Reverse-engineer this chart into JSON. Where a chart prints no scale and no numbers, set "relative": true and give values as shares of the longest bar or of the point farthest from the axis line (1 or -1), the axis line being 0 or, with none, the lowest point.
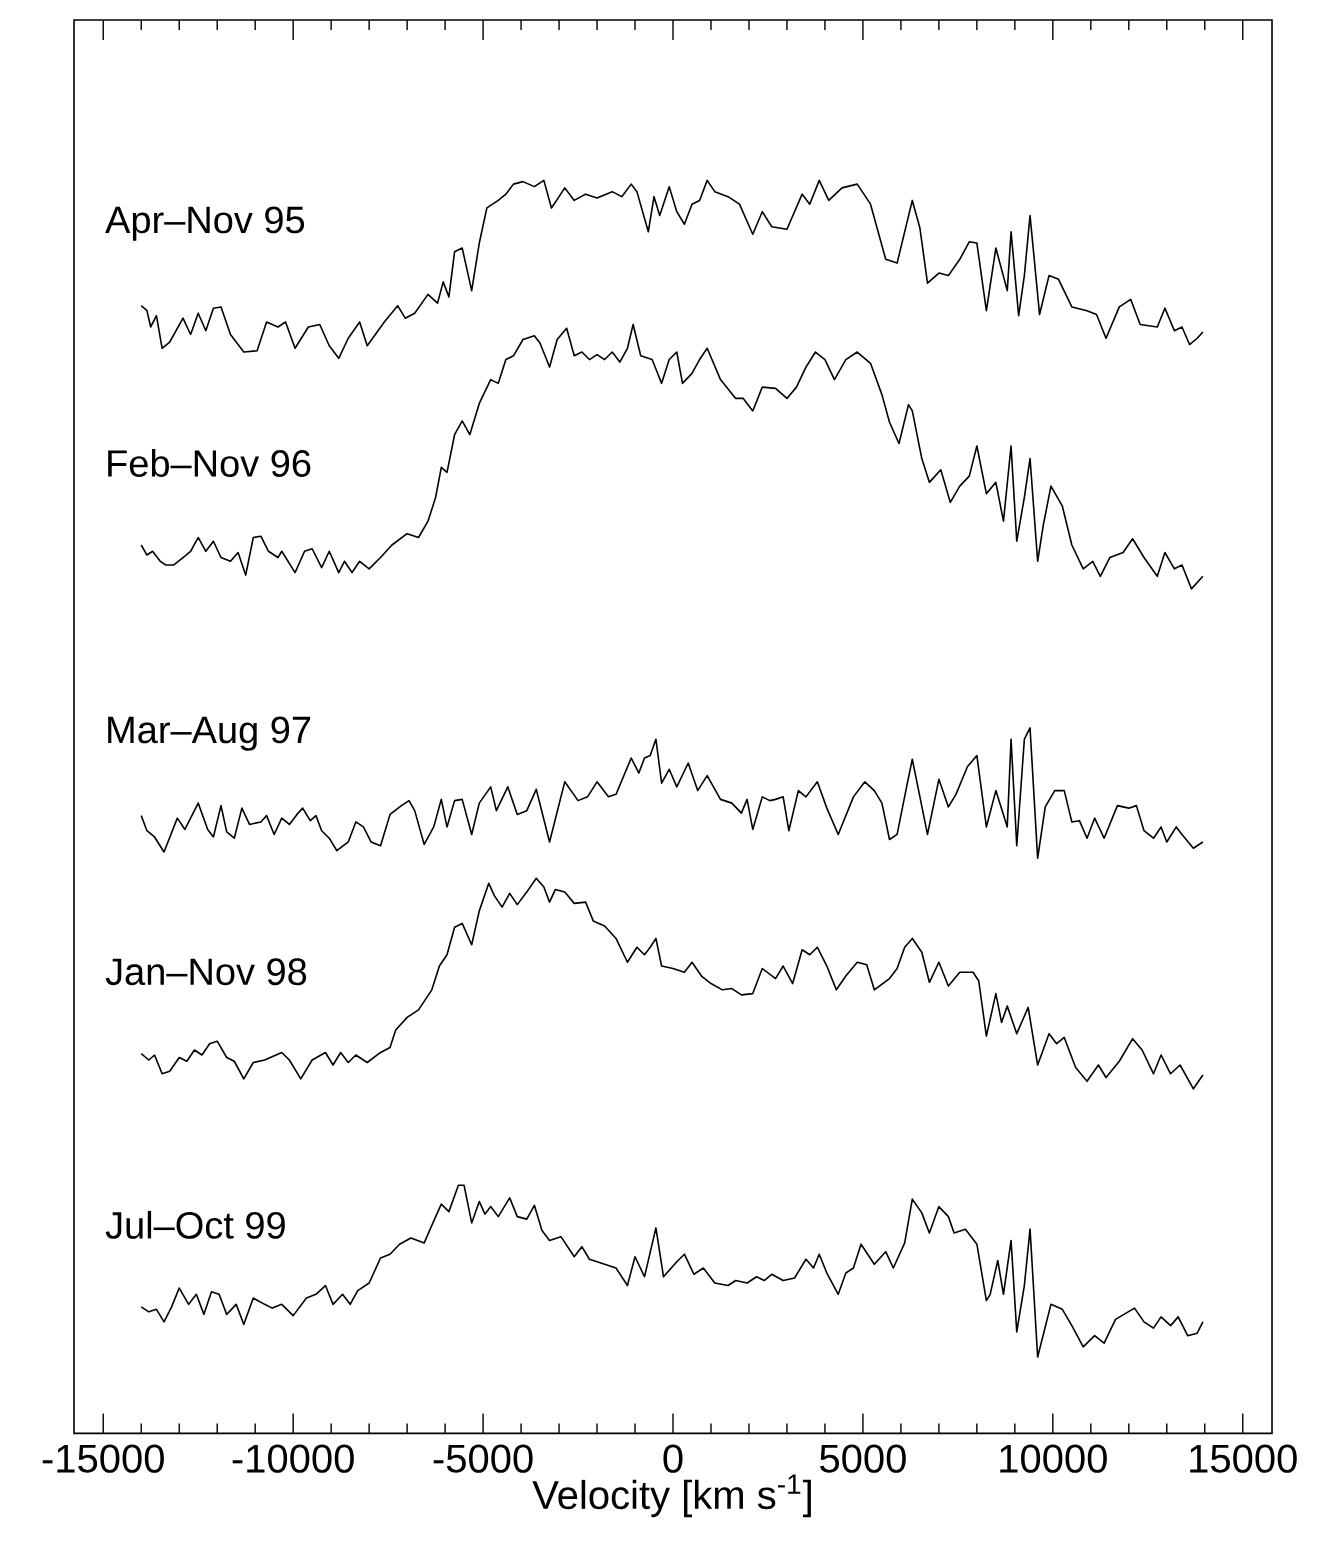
{
  "chart_data": {
    "type": "line",
    "relative": true,
    "xlabel": "Velocity [km s$^{-1}$]",
    "xlim": [
      -15770,
      15770
    ],
    "xticks": [
      -15000,
      -10000,
      -5000,
      0,
      5000,
      10000,
      15000
    ],
    "tick_labels": "x",
    "marker": "none",
    "series": [
      {
        "name": "Apr–Nov 95",
        "color": "#000000",
        "x": [
          -14000,
          -13850,
          -13750,
          -13600,
          -13450,
          -13250,
          -12900,
          -12700,
          -12500,
          -12300,
          -12100,
          -11900,
          -11650,
          -11300,
          -10950,
          -10700,
          -10400,
          -10200,
          -9950,
          -9600,
          -9300,
          -9050,
          -8800,
          -8550,
          -8250,
          -8050,
          -7600,
          -7250,
          -7050,
          -6800,
          -6450,
          -6200,
          -6050,
          -5900,
          -5750,
          -5550,
          -5300,
          -5100,
          -4900,
          -4600,
          -4400,
          -4200,
          -3950,
          -3650,
          -3400,
          -3200,
          -3000,
          -2850,
          -2600,
          -2300,
          -2000,
          -1600,
          -1350,
          -1100,
          -950,
          -650,
          -500,
          -350,
          -100,
          100,
          300,
          500,
          700,
          900,
          1100,
          1450,
          1750,
          2100,
          2350,
          2600,
          3000,
          3400,
          3600,
          3850,
          4100,
          4450,
          4850,
          5200,
          5600,
          5900,
          6300,
          6500,
          6700,
          7000,
          7250,
          7550,
          7800,
          8000,
          8250,
          8500,
          8800,
          8900,
          9100,
          9250,
          9400,
          9650,
          9900,
          10150,
          10500,
          10900,
          11150,
          11400,
          11750,
          12050,
          12300,
          12750,
          12950,
          13200,
          13400,
          13600,
          13800,
          13950
        ],
        "values": [
          0.9,
          0.896,
          0.883,
          0.892,
          0.866,
          0.871,
          0.89,
          0.877,
          0.894,
          0.88,
          0.898,
          0.899,
          0.877,
          0.863,
          0.864,
          0.887,
          0.883,
          0.887,
          0.866,
          0.883,
          0.885,
          0.868,
          0.858,
          0.874,
          0.887,
          0.868,
          0.887,
          0.9,
          0.89,
          0.894,
          0.909,
          0.902,
          0.919,
          0.907,
          0.943,
          0.946,
          0.912,
          0.95,
          0.978,
          0.984,
          0.989,
          0.997,
          0.999,
          0.995,
          1.0,
          0.978,
          0.987,
          0.994,
          0.984,
          0.989,
          0.986,
          0.991,
          0.987,
          0.997,
          0.991,
          0.959,
          0.987,
          0.972,
          0.995,
          0.975,
          0.965,
          0.981,
          0.984,
          1.0,
          0.991,
          0.987,
          0.981,
          0.957,
          0.975,
          0.963,
          0.961,
          0.989,
          0.981,
          1.0,
          0.984,
          0.994,
          0.997,
          0.981,
          0.937,
          0.934,
          0.984,
          0.962,
          0.918,
          0.926,
          0.924,
          0.937,
          0.951,
          0.95,
          0.896,
          0.946,
          0.912,
          0.959,
          0.892,
          0.924,
          0.972,
          0.893,
          0.924,
          0.921,
          0.899,
          0.896,
          0.893,
          0.874,
          0.899,
          0.905,
          0.885,
          0.883,
          0.898,
          0.88,
          0.883,
          0.869,
          0.874,
          0.879
        ]
      },
      {
        "name": "Feb–Nov 96",
        "color": "#000000",
        "x": [
          -14000,
          -13850,
          -13700,
          -13500,
          -13350,
          -13150,
          -12900,
          -12700,
          -12500,
          -12300,
          -12100,
          -11900,
          -11650,
          -11450,
          -11250,
          -11050,
          -10850,
          -10650,
          -10400,
          -10300,
          -9950,
          -9700,
          -9500,
          -9250,
          -9050,
          -8800,
          -8650,
          -8450,
          -8250,
          -8000,
          -7700,
          -7400,
          -7000,
          -6700,
          -6450,
          -6250,
          -6100,
          -5950,
          -5750,
          -5550,
          -5350,
          -5100,
          -4800,
          -4600,
          -4400,
          -4200,
          -3950,
          -3650,
          -3500,
          -3250,
          -3050,
          -2800,
          -2600,
          -2400,
          -2200,
          -2000,
          -1800,
          -1600,
          -1400,
          -1200,
          -1050,
          -850,
          -550,
          -300,
          -100,
          100,
          250,
          500,
          700,
          900,
          1250,
          1650,
          1850,
          2100,
          2350,
          2700,
          3000,
          3250,
          3500,
          3750,
          4000,
          4250,
          4550,
          4850,
          5200,
          5500,
          5700,
          5950,
          6200,
          6300,
          6550,
          6750,
          7050,
          7300,
          7550,
          7800,
          8000,
          8250,
          8500,
          8700,
          8900,
          9050,
          9250,
          9400,
          9600,
          9750,
          9950,
          10250,
          10500,
          10800,
          11050,
          11250,
          11500,
          11850,
          12100,
          12400,
          12750,
          12950,
          13200,
          13400,
          13650,
          13950
        ],
        "values": [
          0.709,
          0.701,
          0.704,
          0.696,
          0.693,
          0.693,
          0.699,
          0.704,
          0.715,
          0.704,
          0.712,
          0.699,
          0.696,
          0.703,
          0.685,
          0.715,
          0.716,
          0.704,
          0.699,
          0.704,
          0.687,
          0.704,
          0.706,
          0.691,
          0.704,
          0.687,
          0.696,
          0.687,
          0.696,
          0.69,
          0.699,
          0.709,
          0.718,
          0.715,
          0.728,
          0.747,
          0.771,
          0.767,
          0.797,
          0.808,
          0.797,
          0.822,
          0.841,
          0.838,
          0.857,
          0.86,
          0.873,
          0.876,
          0.87,
          0.851,
          0.873,
          0.882,
          0.86,
          0.863,
          0.857,
          0.861,
          0.857,
          0.863,
          0.855,
          0.866,
          0.885,
          0.86,
          0.857,
          0.838,
          0.857,
          0.863,
          0.838,
          0.846,
          0.857,
          0.866,
          0.841,
          0.826,
          0.826,
          0.816,
          0.835,
          0.834,
          0.826,
          0.835,
          0.851,
          0.863,
          0.857,
          0.841,
          0.857,
          0.863,
          0.854,
          0.829,
          0.807,
          0.79,
          0.821,
          0.816,
          0.778,
          0.759,
          0.769,
          0.743,
          0.756,
          0.764,
          0.788,
          0.75,
          0.759,
          0.728,
          0.788,
          0.712,
          0.747,
          0.778,
          0.696,
          0.725,
          0.756,
          0.74,
          0.709,
          0.69,
          0.696,
          0.684,
          0.699,
          0.703,
          0.714,
          0.699,
          0.684,
          0.703,
          0.69,
          0.693,
          0.674,
          0.684
        ]
      },
      {
        "name": "Mar–Aug 97",
        "color": "#000000",
        "x": [
          -14000,
          -13850,
          -13650,
          -13400,
          -13050,
          -12850,
          -12500,
          -12250,
          -12100,
          -11900,
          -11750,
          -11550,
          -11350,
          -11150,
          -10850,
          -10700,
          -10500,
          -10300,
          -10100,
          -9900,
          -9750,
          -9550,
          -9400,
          -9250,
          -9050,
          -8850,
          -8550,
          -8350,
          -8150,
          -7950,
          -7700,
          -7450,
          -7150,
          -6950,
          -6800,
          -6550,
          -6300,
          -6100,
          -5950,
          -5750,
          -5550,
          -5300,
          -5100,
          -4800,
          -4650,
          -4350,
          -4100,
          -3850,
          -3600,
          -3250,
          -2850,
          -2500,
          -2250,
          -2000,
          -1700,
          -1500,
          -1100,
          -900,
          -750,
          -600,
          -450,
          -300,
          -100,
          100,
          400,
          650,
          900,
          1250,
          1550,
          1800,
          1950,
          2100,
          2350,
          2550,
          2700,
          2900,
          3050,
          3300,
          3500,
          3800,
          4050,
          4350,
          4750,
          5050,
          5300,
          5500,
          5700,
          5900,
          6150,
          6300,
          6700,
          7000,
          7250,
          7450,
          7750,
          8000,
          8250,
          8500,
          8800,
          8900,
          9050,
          9250,
          9400,
          9600,
          9800,
          10050,
          10300,
          10500,
          10700,
          10900,
          11100,
          11350,
          11700,
          12000,
          12200,
          12400,
          12650,
          12850,
          13000,
          13250,
          13400,
          13700,
          13950
        ],
        "values": [
          0.493,
          0.481,
          0.476,
          0.464,
          0.491,
          0.482,
          0.503,
          0.482,
          0.476,
          0.501,
          0.48,
          0.475,
          0.499,
          0.486,
          0.488,
          0.493,
          0.478,
          0.491,
          0.486,
          0.494,
          0.499,
          0.489,
          0.493,
          0.481,
          0.475,
          0.465,
          0.472,
          0.488,
          0.484,
          0.472,
          0.469,
          0.494,
          0.501,
          0.505,
          0.497,
          0.47,
          0.484,
          0.506,
          0.484,
          0.505,
          0.506,
          0.478,
          0.503,
          0.516,
          0.497,
          0.516,
          0.494,
          0.497,
          0.514,
          0.472,
          0.52,
          0.505,
          0.508,
          0.52,
          0.508,
          0.51,
          0.539,
          0.527,
          0.539,
          0.541,
          0.554,
          0.519,
          0.53,
          0.516,
          0.535,
          0.513,
          0.525,
          0.506,
          0.503,
          0.495,
          0.506,
          0.482,
          0.508,
          0.505,
          0.506,
          0.508,
          0.481,
          0.513,
          0.508,
          0.52,
          0.499,
          0.478,
          0.508,
          0.52,
          0.513,
          0.503,
          0.474,
          0.478,
          0.516,
          0.538,
          0.478,
          0.522,
          0.5,
          0.51,
          0.532,
          0.541,
          0.484,
          0.513,
          0.484,
          0.554,
          0.469,
          0.554,
          0.563,
          0.459,
          0.5,
          0.513,
          0.513,
          0.488,
          0.489,
          0.475,
          0.491,
          0.475,
          0.501,
          0.499,
          0.501,
          0.481,
          0.475,
          0.484,
          0.472,
          0.484,
          0.478,
          0.467,
          0.472
        ]
      },
      {
        "name": "Jan–Nov 98",
        "color": "#000000",
        "x": [
          -14000,
          -13800,
          -13650,
          -13450,
          -13250,
          -13000,
          -12800,
          -12600,
          -12400,
          -12200,
          -12000,
          -11750,
          -11550,
          -11300,
          -11050,
          -10750,
          -10300,
          -10100,
          -9800,
          -9500,
          -9150,
          -8950,
          -8750,
          -8550,
          -8350,
          -8050,
          -7700,
          -7450,
          -7300,
          -7000,
          -6700,
          -6350,
          -6150,
          -5950,
          -5750,
          -5550,
          -5300,
          -5100,
          -4850,
          -4700,
          -4500,
          -4300,
          -4100,
          -3850,
          -3600,
          -3400,
          -3250,
          -3100,
          -2850,
          -2600,
          -2300,
          -2100,
          -1800,
          -1500,
          -1200,
          -950,
          -750,
          -600,
          -450,
          -300,
          0,
          300,
          500,
          750,
          1000,
          1300,
          1550,
          1800,
          2100,
          2350,
          2700,
          2900,
          3150,
          3400,
          3600,
          3800,
          4050,
          4300,
          4550,
          4850,
          5100,
          5300,
          5700,
          5900,
          6100,
          6300,
          6550,
          6750,
          7000,
          7250,
          7550,
          7900,
          8050,
          8250,
          8500,
          8650,
          8800,
          9050,
          9350,
          9600,
          9900,
          10100,
          10300,
          10600,
          10900,
          11200,
          11400,
          11750,
          12100,
          12350,
          12650,
          12850,
          13100,
          13350,
          13700,
          13950
        ],
        "values": [
          0.303,
          0.298,
          0.302,
          0.287,
          0.289,
          0.3,
          0.297,
          0.306,
          0.302,
          0.311,
          0.313,
          0.3,
          0.297,
          0.283,
          0.296,
          0.298,
          0.304,
          0.298,
          0.283,
          0.298,
          0.304,
          0.294,
          0.304,
          0.296,
          0.302,
          0.296,
          0.304,
          0.308,
          0.322,
          0.332,
          0.338,
          0.354,
          0.373,
          0.382,
          0.404,
          0.407,
          0.39,
          0.417,
          0.439,
          0.429,
          0.42,
          0.431,
          0.422,
          0.432,
          0.443,
          0.436,
          0.424,
          0.434,
          0.432,
          0.423,
          0.424,
          0.409,
          0.405,
          0.395,
          0.376,
          0.388,
          0.382,
          0.388,
          0.395,
          0.373,
          0.371,
          0.368,
          0.376,
          0.365,
          0.359,
          0.354,
          0.355,
          0.35,
          0.351,
          0.371,
          0.363,
          0.373,
          0.359,
          0.386,
          0.382,
          0.388,
          0.373,
          0.354,
          0.365,
          0.376,
          0.374,
          0.354,
          0.363,
          0.371,
          0.388,
          0.395,
          0.384,
          0.36,
          0.376,
          0.357,
          0.368,
          0.368,
          0.361,
          0.317,
          0.351,
          0.328,
          0.341,
          0.319,
          0.34,
          0.294,
          0.319,
          0.311,
          0.316,
          0.292,
          0.281,
          0.294,
          0.284,
          0.297,
          0.315,
          0.306,
          0.287,
          0.302,
          0.287,
          0.294,
          0.275,
          0.286
        ]
      },
      {
        "name": "Jul–Oct 99",
        "color": "#000000",
        "x": [
          -14000,
          -13800,
          -13600,
          -13400,
          -13200,
          -13000,
          -12750,
          -12550,
          -12350,
          -12150,
          -11950,
          -11750,
          -11500,
          -11300,
          -11050,
          -10750,
          -10550,
          -10300,
          -10000,
          -9650,
          -9400,
          -9150,
          -8950,
          -8700,
          -8500,
          -8300,
          -8000,
          -7700,
          -7450,
          -7200,
          -6900,
          -6550,
          -6350,
          -6100,
          -5900,
          -5650,
          -5500,
          -5300,
          -5100,
          -4950,
          -4800,
          -4600,
          -4300,
          -4100,
          -3850,
          -3650,
          -3450,
          -3250,
          -2950,
          -2600,
          -2400,
          -2200,
          -1800,
          -1500,
          -1200,
          -1000,
          -750,
          -450,
          -250,
          100,
          300,
          550,
          800,
          1100,
          1450,
          1650,
          1950,
          2200,
          2400,
          2600,
          2900,
          3200,
          3500,
          3700,
          3850,
          4050,
          4350,
          4550,
          4750,
          4950,
          5300,
          5600,
          5800,
          6100,
          6300,
          6550,
          6750,
          7000,
          7250,
          7400,
          7700,
          8000,
          8250,
          8350,
          8550,
          8700,
          8900,
          9050,
          9250,
          9400,
          9600,
          9950,
          10250,
          10500,
          10800,
          11100,
          11350,
          11650,
          12150,
          12400,
          12650,
          12850,
          13100,
          13300,
          13550,
          13800,
          13950
        ],
        "values": [
          0.101,
          0.097,
          0.099,
          0.089,
          0.101,
          0.116,
          0.103,
          0.111,
          0.095,
          0.113,
          0.111,
          0.095,
          0.103,
          0.087,
          0.108,
          0.103,
          0.1,
          0.103,
          0.094,
          0.108,
          0.111,
          0.118,
          0.103,
          0.111,
          0.103,
          0.114,
          0.12,
          0.14,
          0.143,
          0.151,
          0.156,
          0.152,
          0.166,
          0.183,
          0.177,
          0.198,
          0.198,
          0.168,
          0.185,
          0.175,
          0.181,
          0.173,
          0.188,
          0.173,
          0.171,
          0.182,
          0.162,
          0.154,
          0.157,
          0.141,
          0.149,
          0.139,
          0.135,
          0.132,
          0.118,
          0.141,
          0.125,
          0.164,
          0.125,
          0.137,
          0.143,
          0.127,
          0.132,
          0.12,
          0.118,
          0.122,
          0.12,
          0.125,
          0.122,
          0.127,
          0.122,
          0.124,
          0.139,
          0.132,
          0.143,
          0.128,
          0.111,
          0.128,
          0.132,
          0.151,
          0.135,
          0.145,
          0.132,
          0.152,
          0.187,
          0.176,
          0.16,
          0.181,
          0.173,
          0.16,
          0.163,
          0.151,
          0.106,
          0.111,
          0.138,
          0.111,
          0.154,
          0.081,
          0.118,
          0.163,
          0.061,
          0.103,
          0.099,
          0.086,
          0.069,
          0.078,
          0.072,
          0.091,
          0.1,
          0.089,
          0.084,
          0.093,
          0.086,
          0.093,
          0.078,
          0.08,
          0.089
        ]
      }
    ]
  }
}
